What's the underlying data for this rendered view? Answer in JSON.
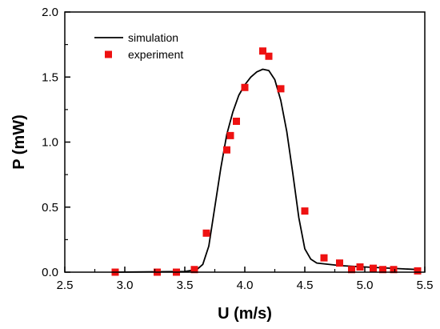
{
  "chart_data": {
    "type": "line",
    "title": "",
    "xlabel": "U (m/s)",
    "ylabel": "P (mW)",
    "xlim": [
      2.5,
      5.5
    ],
    "ylim": [
      0.0,
      2.0
    ],
    "xticks": [
      2.5,
      3.0,
      3.5,
      4.0,
      4.5,
      5.0,
      5.5
    ],
    "xtick_labels": [
      "2.5",
      "3.0",
      "3.5",
      "4.0",
      "4.5",
      "5.0",
      "5.5"
    ],
    "yticks": [
      0.0,
      0.5,
      1.0,
      1.5,
      2.0
    ],
    "ytick_labels": [
      "0.0",
      "0.5",
      "1.0",
      "1.5",
      "2.0"
    ],
    "grid": false,
    "legend": "top-left",
    "series": [
      {
        "name": "simulation",
        "kind": "line",
        "color": "#000000",
        "x": [
          2.9,
          3.5,
          3.6,
          3.65,
          3.7,
          3.75,
          3.8,
          3.85,
          3.9,
          3.95,
          4.0,
          4.05,
          4.1,
          4.15,
          4.2,
          4.25,
          4.3,
          4.35,
          4.4,
          4.45,
          4.5,
          4.55,
          4.6,
          4.8,
          5.0,
          5.45
        ],
        "y": [
          0.0,
          0.005,
          0.02,
          0.06,
          0.2,
          0.5,
          0.8,
          1.06,
          1.23,
          1.36,
          1.44,
          1.5,
          1.54,
          1.56,
          1.55,
          1.48,
          1.32,
          1.08,
          0.76,
          0.42,
          0.18,
          0.1,
          0.07,
          0.05,
          0.04,
          0.02
        ]
      },
      {
        "name": "experiment",
        "kind": "scatter",
        "marker": "square",
        "color": "#ee1111",
        "x": [
          2.92,
          3.27,
          3.43,
          3.58,
          3.68,
          3.85,
          3.88,
          3.93,
          4.0,
          4.15,
          4.2,
          4.3,
          4.5,
          4.66,
          4.79,
          4.89,
          4.96,
          5.07,
          5.15,
          5.24,
          5.44
        ],
        "y": [
          0.0,
          0.0,
          0.0,
          0.02,
          0.3,
          0.94,
          1.05,
          1.16,
          1.42,
          1.7,
          1.66,
          1.41,
          0.47,
          0.11,
          0.07,
          0.02,
          0.04,
          0.03,
          0.02,
          0.02,
          0.01
        ]
      }
    ]
  }
}
